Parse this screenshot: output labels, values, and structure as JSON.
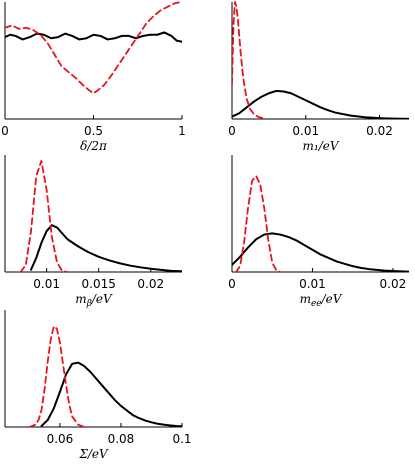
{
  "chart_data": [
    {
      "type": "line",
      "xlabel": "δ/2π",
      "xlim": [
        0,
        1
      ],
      "ylim": [
        0,
        1
      ],
      "ticks": [
        0,
        0.5,
        1
      ],
      "tick_labels": [
        "0",
        "0.5",
        "1"
      ],
      "series": [
        {
          "style": "solid",
          "color": "#000000",
          "x": [
            0,
            0.03,
            0.06,
            0.1,
            0.14,
            0.18,
            0.22,
            0.26,
            0.3,
            0.34,
            0.38,
            0.42,
            0.46,
            0.5,
            0.54,
            0.58,
            0.62,
            0.66,
            0.7,
            0.74,
            0.78,
            0.82,
            0.86,
            0.9,
            0.94,
            0.97,
            1
          ],
          "y": [
            0.7,
            0.72,
            0.71,
            0.68,
            0.7,
            0.73,
            0.72,
            0.69,
            0.7,
            0.73,
            0.71,
            0.68,
            0.69,
            0.72,
            0.71,
            0.68,
            0.69,
            0.71,
            0.71,
            0.69,
            0.71,
            0.72,
            0.72,
            0.74,
            0.71,
            0.67,
            0.66
          ]
        },
        {
          "style": "dashed",
          "color": "#e8141c",
          "x": [
            0,
            0.04,
            0.08,
            0.12,
            0.16,
            0.2,
            0.24,
            0.28,
            0.32,
            0.36,
            0.4,
            0.44,
            0.48,
            0.5,
            0.52,
            0.56,
            0.6,
            0.64,
            0.68,
            0.72,
            0.76,
            0.8,
            0.84,
            0.88,
            0.92,
            0.96,
            1
          ],
          "y": [
            0.78,
            0.8,
            0.77,
            0.78,
            0.76,
            0.72,
            0.65,
            0.55,
            0.45,
            0.4,
            0.35,
            0.29,
            0.24,
            0.22,
            0.24,
            0.29,
            0.37,
            0.46,
            0.55,
            0.64,
            0.73,
            0.82,
            0.88,
            0.93,
            0.96,
            0.99,
            1.0
          ]
        }
      ]
    },
    {
      "type": "line",
      "xlabel": "m₁/eV",
      "xlim": [
        0,
        0.024
      ],
      "ylim": [
        0,
        1
      ],
      "ticks": [
        0,
        0.01,
        0.02
      ],
      "tick_labels": [
        "0",
        "0.01",
        "0.02"
      ],
      "series": [
        {
          "style": "solid",
          "color": "#000000",
          "x": [
            0,
            0.001,
            0.002,
            0.003,
            0.004,
            0.005,
            0.006,
            0.007,
            0.008,
            0.009,
            0.01,
            0.011,
            0.012,
            0.013,
            0.014,
            0.016,
            0.018,
            0.02,
            0.022,
            0.024
          ],
          "y": [
            0.02,
            0.05,
            0.1,
            0.15,
            0.19,
            0.22,
            0.24,
            0.235,
            0.22,
            0.19,
            0.16,
            0.13,
            0.1,
            0.075,
            0.055,
            0.03,
            0.015,
            0.007,
            0.003,
            0.001
          ]
        },
        {
          "style": "dashed",
          "color": "#e8141c",
          "x": [
            0,
            0.0002,
            0.0004,
            0.0006,
            0.0008,
            0.001,
            0.0012,
            0.0014,
            0.0016,
            0.0018,
            0.002,
            0.0025,
            0.003,
            0.0035,
            0.004,
            0.0045
          ],
          "y": [
            0.3,
            0.8,
            1.0,
            0.96,
            0.85,
            0.7,
            0.55,
            0.42,
            0.32,
            0.24,
            0.17,
            0.08,
            0.04,
            0.02,
            0.01,
            0.0
          ]
        }
      ]
    },
    {
      "type": "line",
      "xlabel": "m_β/eV",
      "xlim": [
        0.006,
        0.023
      ],
      "ylim": [
        0,
        1
      ],
      "ticks": [
        0.01,
        0.015,
        0.02
      ],
      "tick_labels": [
        "0.01",
        "0.015",
        "0.02"
      ],
      "series": [
        {
          "style": "solid",
          "color": "#000000",
          "x": [
            0.0085,
            0.009,
            0.0095,
            0.01,
            0.0105,
            0.011,
            0.0115,
            0.012,
            0.013,
            0.014,
            0.015,
            0.016,
            0.017,
            0.018,
            0.019,
            0.02,
            0.021,
            0.022,
            0.023
          ],
          "y": [
            0.02,
            0.12,
            0.25,
            0.35,
            0.4,
            0.38,
            0.33,
            0.28,
            0.22,
            0.17,
            0.13,
            0.1,
            0.075,
            0.055,
            0.04,
            0.028,
            0.018,
            0.01,
            0.006
          ]
        },
        {
          "style": "dashed",
          "color": "#e8141c",
          "x": [
            0.0075,
            0.008,
            0.0085,
            0.009,
            0.0095,
            0.01,
            0.0105,
            0.011,
            0.0115,
            0.012
          ],
          "y": [
            0.0,
            0.06,
            0.35,
            0.82,
            0.95,
            0.7,
            0.3,
            0.08,
            0.01,
            0.0
          ]
        }
      ]
    },
    {
      "type": "line",
      "xlabel": "m_ee/eV",
      "xlim": [
        0,
        0.022
      ],
      "ylim": [
        0,
        1
      ],
      "ticks": [
        0,
        0.01,
        0.02
      ],
      "tick_labels": [
        "0",
        "0.01",
        "0.02"
      ],
      "series": [
        {
          "style": "solid",
          "color": "#000000",
          "x": [
            0,
            0.001,
            0.002,
            0.003,
            0.004,
            0.005,
            0.006,
            0.007,
            0.008,
            0.009,
            0.01,
            0.011,
            0.012,
            0.013,
            0.014,
            0.015,
            0.016,
            0.017,
            0.018,
            0.019,
            0.02,
            0.021,
            0.022
          ],
          "y": [
            0.06,
            0.13,
            0.21,
            0.28,
            0.32,
            0.33,
            0.32,
            0.3,
            0.27,
            0.23,
            0.19,
            0.15,
            0.12,
            0.09,
            0.07,
            0.05,
            0.035,
            0.025,
            0.018,
            0.012,
            0.008,
            0.005,
            0.003
          ]
        },
        {
          "style": "dashed",
          "color": "#e8141c",
          "x": [
            0.0005,
            0.001,
            0.0015,
            0.002,
            0.0025,
            0.003,
            0.0035,
            0.004,
            0.0045,
            0.005,
            0.0055,
            0.006
          ],
          "y": [
            0.0,
            0.05,
            0.25,
            0.55,
            0.78,
            0.82,
            0.75,
            0.55,
            0.28,
            0.08,
            0.015,
            0.0
          ]
        }
      ]
    },
    {
      "type": "line",
      "xlabel": "Σ/eV",
      "xlim": [
        0.042,
        0.1
      ],
      "ylim": [
        0,
        1
      ],
      "ticks": [
        0.06,
        0.08,
        0.1
      ],
      "tick_labels": [
        "0.06",
        "0.08",
        "0.1"
      ],
      "series": [
        {
          "style": "solid",
          "color": "#000000",
          "x": [
            0.054,
            0.056,
            0.058,
            0.06,
            0.062,
            0.064,
            0.066,
            0.068,
            0.07,
            0.072,
            0.074,
            0.076,
            0.078,
            0.08,
            0.082,
            0.084,
            0.086,
            0.088,
            0.09,
            0.092,
            0.094,
            0.096,
            0.098,
            0.1
          ],
          "y": [
            0.01,
            0.06,
            0.16,
            0.3,
            0.45,
            0.54,
            0.55,
            0.52,
            0.47,
            0.41,
            0.35,
            0.29,
            0.23,
            0.18,
            0.14,
            0.1,
            0.075,
            0.055,
            0.04,
            0.028,
            0.02,
            0.014,
            0.009,
            0.006
          ]
        },
        {
          "style": "dashed",
          "color": "#e8141c",
          "x": [
            0.05,
            0.052,
            0.053,
            0.054,
            0.055,
            0.056,
            0.057,
            0.058,
            0.059,
            0.06,
            0.061,
            0.062,
            0.063,
            0.064,
            0.066,
            0.068
          ],
          "y": [
            0.0,
            0.02,
            0.06,
            0.15,
            0.33,
            0.56,
            0.75,
            0.86,
            0.84,
            0.72,
            0.54,
            0.36,
            0.2,
            0.09,
            0.02,
            0.0
          ]
        }
      ]
    }
  ]
}
